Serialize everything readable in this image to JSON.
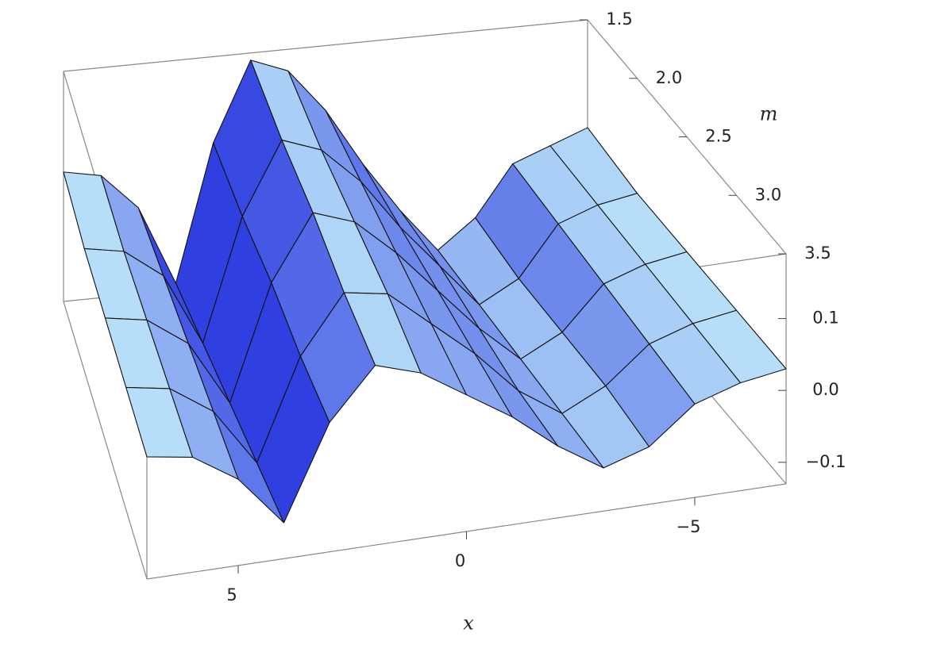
{
  "chart_data": {
    "type": "surface",
    "x_label": "x",
    "m_label": "m",
    "x": [
      -7,
      -6,
      -5,
      -4,
      -3,
      -2,
      -1,
      0,
      1,
      2,
      3,
      4,
      5,
      6,
      7
    ],
    "m": [
      1.5,
      2.0,
      2.5,
      3.0,
      3.5
    ],
    "z": [
      [
        0.04,
        0.02,
        0,
        -0.07,
        -0.11,
        -0.05,
        0.02,
        0.1,
        0.16,
        0.18,
        0.07,
        -0.12,
        -0.01,
        0.04,
        0.05
      ],
      [
        0.03,
        0.02,
        0,
        -0.07,
        -0.1,
        -0.04,
        0.02,
        0.09,
        0.14,
        0.16,
        0.06,
        -0.11,
        -0.01,
        0.03,
        0.04
      ],
      [
        0.03,
        0.02,
        0,
        -0.06,
        -0.09,
        -0.04,
        0.02,
        0.08,
        0.13,
        0.15,
        0.06,
        -0.1,
        -0.01,
        0.03,
        0.04
      ],
      [
        0.03,
        0.02,
        0,
        -0.05,
        -0.08,
        -0.04,
        0.02,
        0.07,
        0.12,
        0.13,
        0.05,
        -0.09,
        -0.01,
        0.03,
        0.04
      ],
      [
        0.03,
        0.02,
        0,
        -0.05,
        -0.07,
        -0.03,
        0.02,
        0.06,
        0.1,
        0.12,
        0.05,
        -0.08,
        -0.01,
        0.03,
        0.04
      ]
    ],
    "xlim": [
      -7,
      7
    ],
    "mlim": [
      1.5,
      3.5
    ],
    "zlim": [
      -0.13,
      0.19
    ],
    "xticks": [
      {
        "value": -5,
        "label": "−5"
      },
      0,
      5
    ],
    "mticks": [
      1.5,
      {
        "value": 2,
        "label": "2.0"
      },
      2.5,
      {
        "value": 3,
        "label": "3.0"
      },
      3.5
    ],
    "zticks": [
      {
        "value": -0.1,
        "label": "−0.1"
      },
      {
        "value": 0,
        "label": "0.0"
      },
      0.1
    ],
    "colors": [
      "#2f3fe0",
      "#c4eefb"
    ]
  }
}
